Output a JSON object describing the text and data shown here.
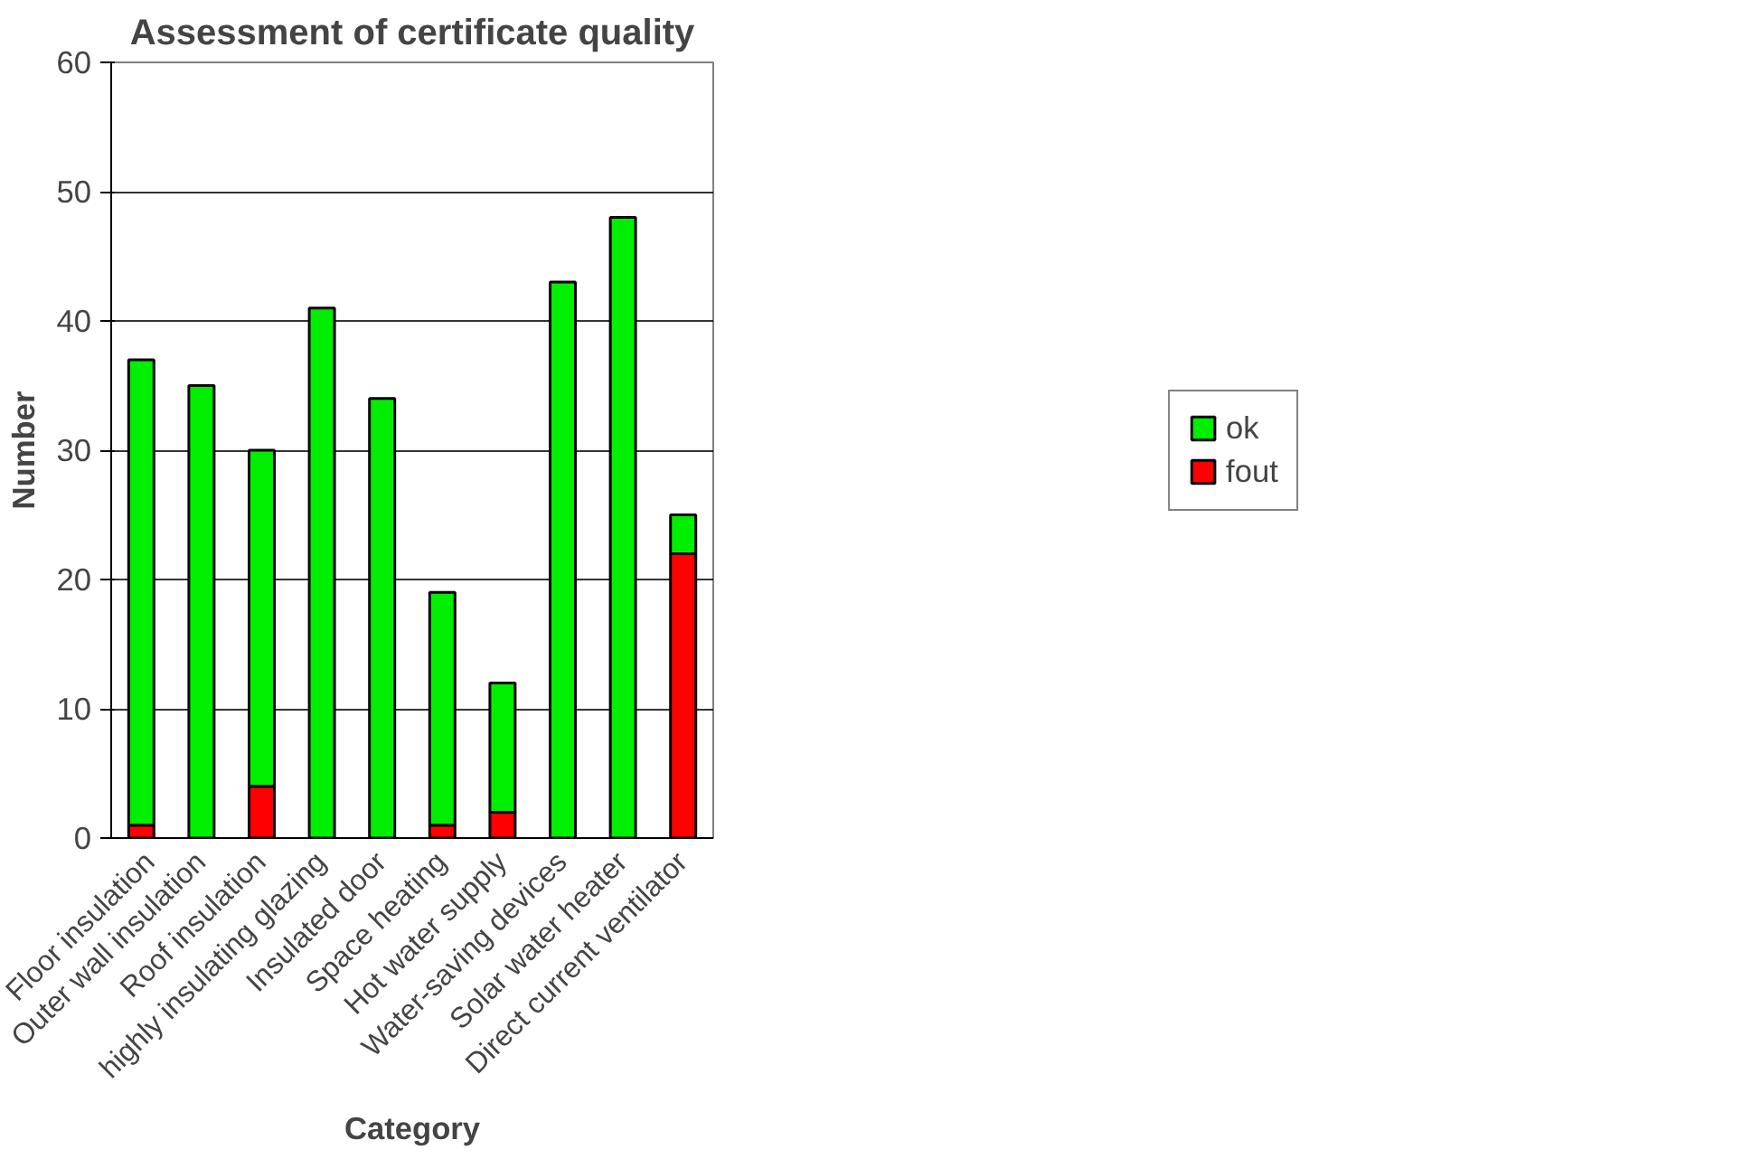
{
  "chart_data": {
    "type": "bar",
    "title": "Assessment of certificate quality",
    "xlabel": "Category",
    "ylabel": "Number",
    "categories": [
      "Floor insulation",
      "Outer wall insulation",
      "Roof insulation",
      "highly insulating glazing",
      "Insulated door",
      "Space heating",
      "Hot water supply",
      "Water-saving devices",
      "Solar water heater",
      "Direct current ventilator"
    ],
    "stacked": true,
    "series": [
      {
        "name": "fout",
        "color": "#ff0000",
        "values": [
          1,
          0,
          4,
          0,
          0,
          1,
          2,
          0,
          0,
          22
        ]
      },
      {
        "name": "ok",
        "color": "#00ee00",
        "values": [
          36,
          35,
          26,
          41,
          34,
          18,
          10,
          43,
          48,
          3
        ]
      }
    ],
    "ylim": [
      0,
      60
    ],
    "yticks": [
      0,
      10,
      20,
      30,
      40,
      50,
      60
    ],
    "grid": "y",
    "legend": "right"
  }
}
